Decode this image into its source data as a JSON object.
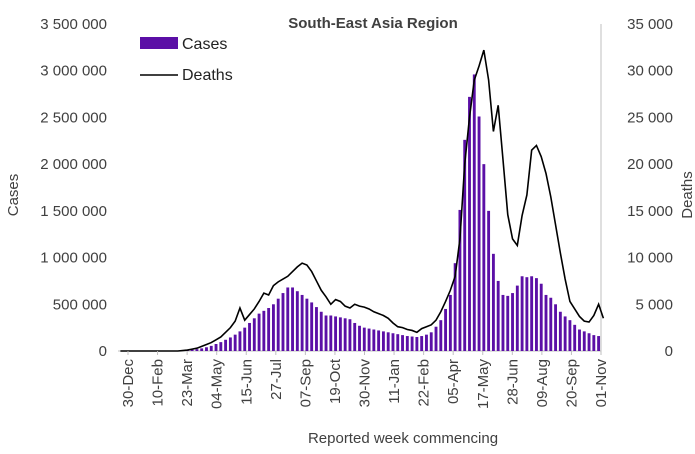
{
  "chart_data": {
    "type": "bar",
    "title": "South-East  Asia Region",
    "xlabel": "Reported week commencing",
    "ylabel": "Cases",
    "y2label": "Deaths",
    "ylim": [
      0,
      3500000
    ],
    "y2lim": [
      0,
      35000
    ],
    "y_ticks": [
      "0",
      "500 000",
      "1 000 000",
      "1 500 000",
      "2 000 000",
      "2 500 000",
      "3 000 000",
      "3 500 000"
    ],
    "y2_ticks": [
      "0",
      "5 000",
      "10 000",
      "15 000",
      "20 000",
      "25 000",
      "30 000",
      "35 000"
    ],
    "x_tick_labels": [
      "30-Dec",
      "10-Feb",
      "23-Mar",
      "04-May",
      "15-Jun",
      "27-Jul",
      "07-Sep",
      "19-Oct",
      "30-Nov",
      "11-Jan",
      "22-Feb",
      "05-Apr",
      "17-May",
      "28-Jun",
      "09-Aug",
      "20-Sep",
      "01-Nov"
    ],
    "legend_position": "top-left",
    "colors": {
      "cases": "#5b0fa6",
      "deaths": "#000000",
      "axis": "#bfbfbf"
    },
    "series": [
      {
        "name": "Cases",
        "type": "bar",
        "axis": "left",
        "values": [
          0,
          0,
          0,
          0,
          0,
          0,
          0,
          0,
          0,
          0,
          0,
          0,
          2000,
          6000,
          10000,
          15000,
          20000,
          28000,
          40000,
          55000,
          75000,
          95000,
          120000,
          145000,
          175000,
          210000,
          250000,
          300000,
          350000,
          400000,
          430000,
          460000,
          500000,
          560000,
          620000,
          680000,
          680000,
          640000,
          600000,
          560000,
          520000,
          470000,
          420000,
          380000,
          380000,
          370000,
          360000,
          350000,
          340000,
          300000,
          270000,
          250000,
          240000,
          230000,
          220000,
          210000,
          200000,
          190000,
          180000,
          170000,
          160000,
          155000,
          150000,
          160000,
          175000,
          200000,
          260000,
          330000,
          450000,
          600000,
          940000,
          1510000,
          2260000,
          2720000,
          2960000,
          2510000,
          2000000,
          1500000,
          1040000,
          750000,
          600000,
          590000,
          620000,
          700000,
          800000,
          790000,
          800000,
          780000,
          720000,
          600000,
          570000,
          500000,
          420000,
          370000,
          330000,
          280000,
          230000,
          210000,
          190000,
          170000,
          160000
        ]
      },
      {
        "name": "Deaths",
        "type": "line",
        "axis": "right",
        "values": [
          0,
          0,
          0,
          0,
          0,
          0,
          0,
          0,
          0,
          0,
          0,
          0,
          0,
          50,
          100,
          200,
          300,
          500,
          700,
          900,
          1200,
          1500,
          2000,
          2500,
          3200,
          4600,
          3300,
          3900,
          4500,
          5300,
          6200,
          6000,
          7000,
          7400,
          7700,
          8000,
          8500,
          9000,
          9400,
          9200,
          8500,
          7500,
          6500,
          5800,
          5000,
          5500,
          5300,
          4800,
          4600,
          5000,
          4800,
          4700,
          4500,
          4200,
          4000,
          3800,
          3500,
          3000,
          2600,
          2500,
          2300,
          2200,
          2000,
          2400,
          2600,
          2800,
          3300,
          4200,
          5300,
          6500,
          8000,
          12000,
          20000,
          25000,
          29000,
          30500,
          32200,
          29000,
          23500,
          26300,
          20500,
          14600,
          12000,
          11300,
          14500,
          16700,
          21500,
          22000,
          20800,
          19000,
          16500,
          13500,
          10500,
          7700,
          5300,
          4500,
          3700,
          3200,
          3100,
          3800,
          5000,
          3500
        ]
      }
    ]
  }
}
